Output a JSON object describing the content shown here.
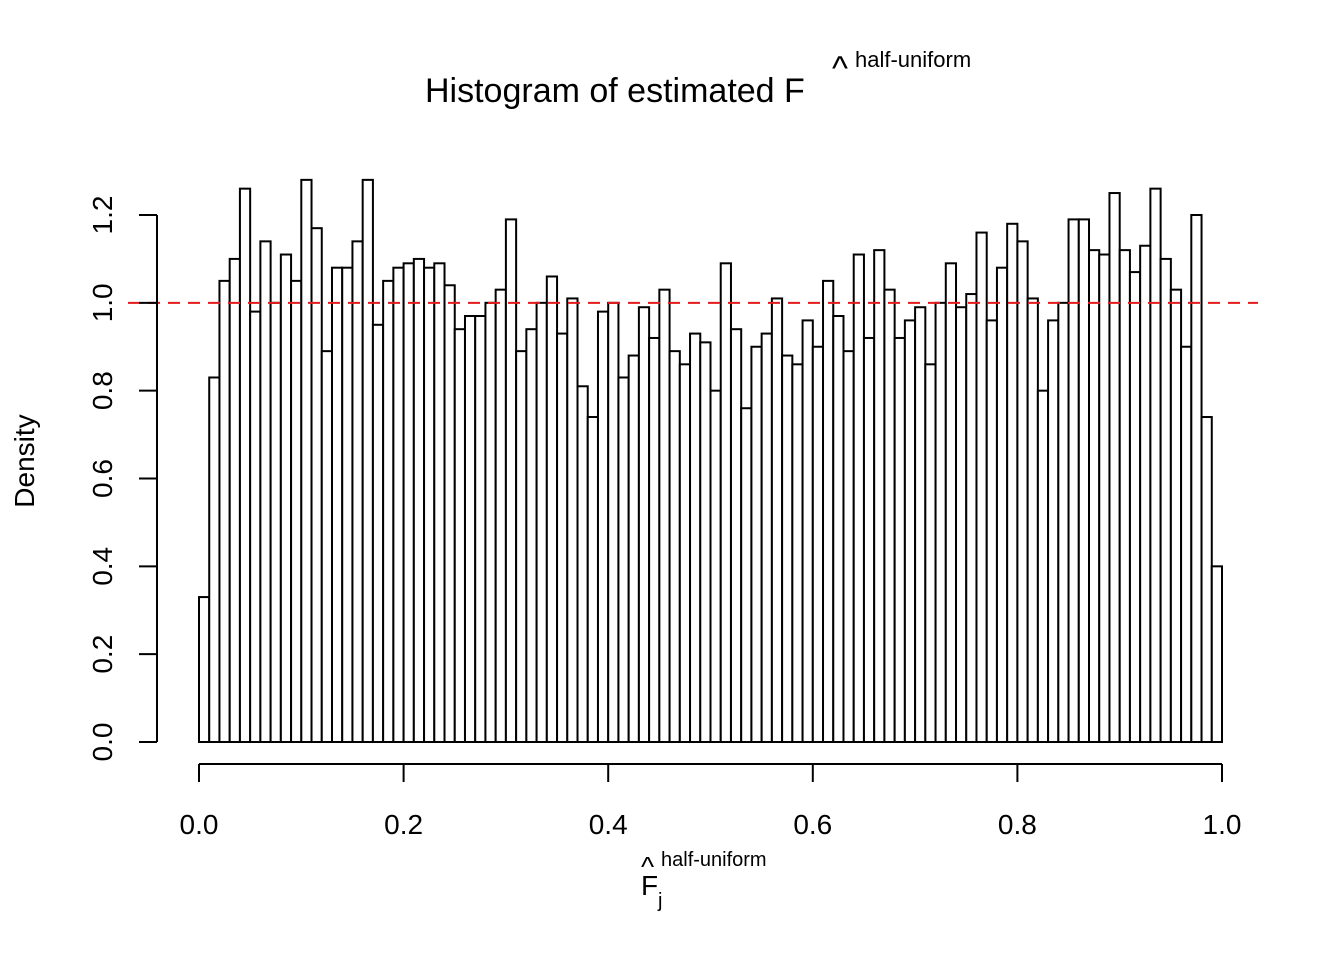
{
  "chart_data": {
    "type": "bar",
    "title": "Histogram of estimated F",
    "title_hat": "^",
    "title_superscript": "half-uniform",
    "xlabel": "F",
    "xlabel_hat": "^",
    "xlabel_subscript": "j",
    "xlabel_superscript": "half-uniform",
    "ylabel": "Density",
    "xlim": [
      0,
      1
    ],
    "ylim": [
      0,
      1.3
    ],
    "bin_width": 0.01,
    "x_ticks": [
      "0.0",
      "0.2",
      "0.4",
      "0.6",
      "0.8",
      "1.0"
    ],
    "y_ticks": [
      "0.0",
      "0.2",
      "0.4",
      "0.6",
      "0.8",
      "1.0",
      "1.2"
    ],
    "reference_line": {
      "y": 1.0,
      "color": "#e41a1c",
      "style": "dashed"
    },
    "bar_fill": "#ffffff",
    "bar_stroke": "#000000",
    "values": [
      0.33,
      0.83,
      1.05,
      1.1,
      1.26,
      0.98,
      1.14,
      1.0,
      1.11,
      1.05,
      1.28,
      1.17,
      0.89,
      1.08,
      1.08,
      1.14,
      1.28,
      0.95,
      1.05,
      1.08,
      1.09,
      1.1,
      1.08,
      1.09,
      1.04,
      0.94,
      0.97,
      0.97,
      1.0,
      1.03,
      1.19,
      0.89,
      0.94,
      1.0,
      1.06,
      0.93,
      1.01,
      0.81,
      0.74,
      0.98,
      1.0,
      0.83,
      0.88,
      0.99,
      0.92,
      1.03,
      0.89,
      0.86,
      0.93,
      0.91,
      0.8,
      1.09,
      0.94,
      0.76,
      0.9,
      0.93,
      1.01,
      0.88,
      0.86,
      0.96,
      0.9,
      1.05,
      0.97,
      0.89,
      1.11,
      0.92,
      1.12,
      1.03,
      0.92,
      0.96,
      0.99,
      0.86,
      1.0,
      1.09,
      0.99,
      1.02,
      1.16,
      0.96,
      1.08,
      1.18,
      1.14,
      1.01,
      0.8,
      0.96,
      1.0,
      1.19,
      1.19,
      1.12,
      1.11,
      1.25,
      1.12,
      1.07,
      1.13,
      1.26,
      1.1,
      1.03,
      0.9,
      1.2,
      0.74,
      0.4
    ]
  }
}
